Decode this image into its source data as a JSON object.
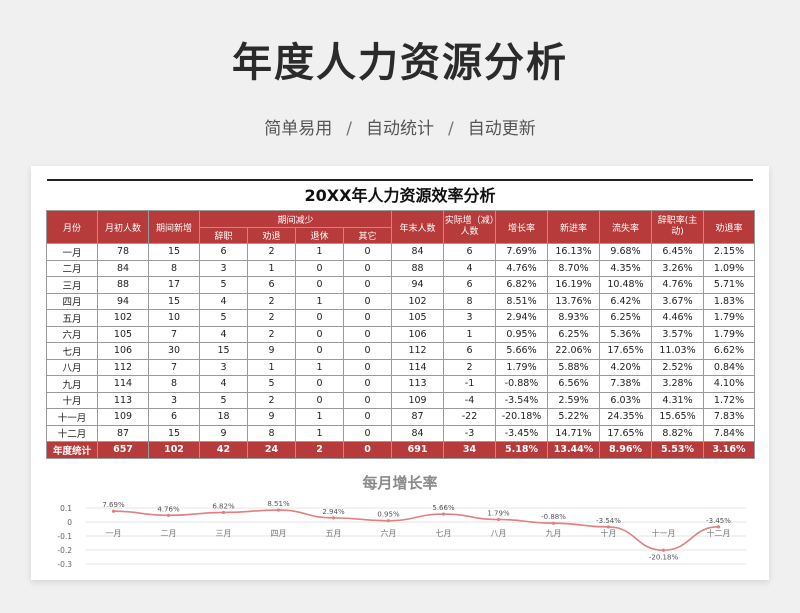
{
  "header": {
    "title": "年度人力资源分析",
    "tags": [
      "简单易用",
      "自动统计",
      "自动更新"
    ],
    "separator": "/"
  },
  "sheet": {
    "title": "20XX年人力资源效率分析",
    "columns": {
      "month": "月份",
      "start": "月初人数",
      "new": "期间新增",
      "reduce_group": "期间减少",
      "resign": "辞职",
      "dismiss": "劝退",
      "retire": "退休",
      "other": "其它",
      "end": "年末人数",
      "net": "实际增（减）人数",
      "growth": "增长率",
      "hire_rate": "新进率",
      "loss_rate": "流失率",
      "resign_rate": "辞职率(主动)",
      "dismiss_rate": "劝退率"
    },
    "rows": [
      [
        "一月",
        "78",
        "15",
        "6",
        "2",
        "1",
        "0",
        "84",
        "6",
        "7.69%",
        "16.13%",
        "9.68%",
        "6.45%",
        "2.15%"
      ],
      [
        "二月",
        "84",
        "8",
        "3",
        "1",
        "0",
        "0",
        "88",
        "4",
        "4.76%",
        "8.70%",
        "4.35%",
        "3.26%",
        "1.09%"
      ],
      [
        "三月",
        "88",
        "17",
        "5",
        "6",
        "0",
        "0",
        "94",
        "6",
        "6.82%",
        "16.19%",
        "10.48%",
        "4.76%",
        "5.71%"
      ],
      [
        "四月",
        "94",
        "15",
        "4",
        "2",
        "1",
        "0",
        "102",
        "8",
        "8.51%",
        "13.76%",
        "6.42%",
        "3.67%",
        "1.83%"
      ],
      [
        "五月",
        "102",
        "10",
        "5",
        "2",
        "0",
        "0",
        "105",
        "3",
        "2.94%",
        "8.93%",
        "6.25%",
        "4.46%",
        "1.79%"
      ],
      [
        "六月",
        "105",
        "7",
        "4",
        "2",
        "0",
        "0",
        "106",
        "1",
        "0.95%",
        "6.25%",
        "5.36%",
        "3.57%",
        "1.79%"
      ],
      [
        "七月",
        "106",
        "30",
        "15",
        "9",
        "0",
        "0",
        "112",
        "6",
        "5.66%",
        "22.06%",
        "17.65%",
        "11.03%",
        "6.62%"
      ],
      [
        "八月",
        "112",
        "7",
        "3",
        "1",
        "1",
        "0",
        "114",
        "2",
        "1.79%",
        "5.88%",
        "4.20%",
        "2.52%",
        "0.84%"
      ],
      [
        "九月",
        "114",
        "8",
        "4",
        "5",
        "0",
        "0",
        "113",
        "-1",
        "-0.88%",
        "6.56%",
        "7.38%",
        "3.28%",
        "4.10%"
      ],
      [
        "十月",
        "113",
        "3",
        "5",
        "2",
        "0",
        "0",
        "109",
        "-4",
        "-3.54%",
        "2.59%",
        "6.03%",
        "4.31%",
        "1.72%"
      ],
      [
        "十一月",
        "109",
        "6",
        "18",
        "9",
        "1",
        "0",
        "87",
        "-22",
        "-20.18%",
        "5.22%",
        "24.35%",
        "15.65%",
        "7.83%"
      ],
      [
        "十二月",
        "87",
        "15",
        "9",
        "8",
        "1",
        "0",
        "84",
        "-3",
        "-3.45%",
        "14.71%",
        "17.65%",
        "8.82%",
        "7.84%"
      ]
    ],
    "total": [
      "年度统计",
      "657",
      "102",
      "42",
      "24",
      "2",
      "0",
      "691",
      "34",
      "5.18%",
      "13.44%",
      "8.96%",
      "5.53%",
      "3.16%"
    ]
  },
  "chart_data": {
    "type": "line",
    "title": "每月增长率",
    "categories": [
      "一月",
      "二月",
      "三月",
      "四月",
      "五月",
      "六月",
      "七月",
      "八月",
      "九月",
      "十月",
      "十一月",
      "十二月"
    ],
    "series": [
      {
        "values": [
          0.0769,
          0.0476,
          0.0682,
          0.0851,
          0.0294,
          0.0095,
          0.0566,
          0.0179,
          -0.0088,
          -0.0354,
          -0.2018,
          -0.0345
        ],
        "labels": [
          "7.69%",
          "4.76%",
          "6.82%",
          "8.51%",
          "2.94%",
          "0.95%",
          "5.66%",
          "1.79%",
          "-0.88%",
          "-3.54%",
          "-20.18%",
          "-3.45%"
        ],
        "color": "#e08080"
      }
    ],
    "yticks": [
      "0.1",
      "0",
      "-0.1",
      "-0.2",
      "-0.3"
    ],
    "ylim": [
      -0.3,
      0.1
    ],
    "grid": true
  }
}
